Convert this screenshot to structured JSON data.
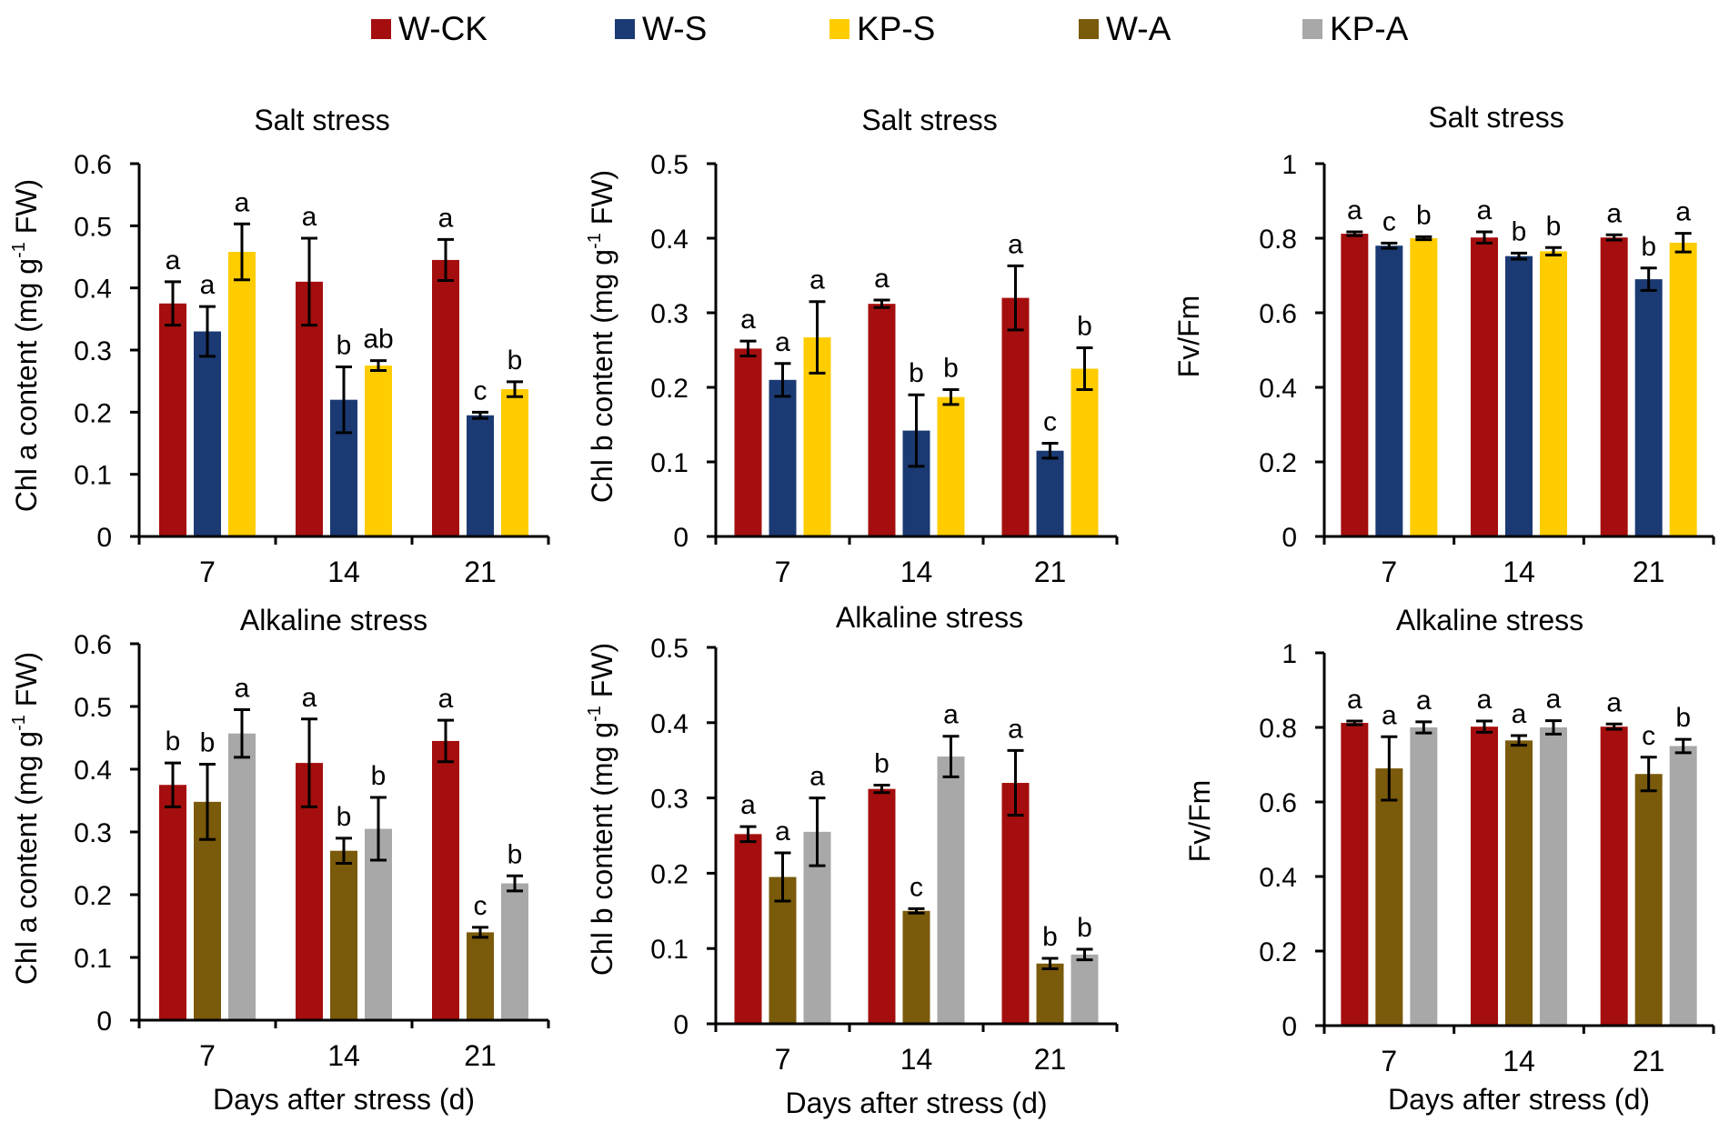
{
  "legend": [
    {
      "name": "W-CK",
      "color": "#A50E0E"
    },
    {
      "name": "W-S",
      "color": "#1B3A73"
    },
    {
      "name": "KP-S",
      "color": "#FFCC00"
    },
    {
      "name": "W-A",
      "color": "#7A5A0B"
    },
    {
      "name": "KP-A",
      "color": "#A8A8A8"
    }
  ],
  "chart_data": [
    {
      "type": "bar",
      "title": "Salt stress",
      "xlabel": "",
      "ylabel": "Chl a content (mg g⁻¹ FW)",
      "ylim": [
        0,
        0.6
      ],
      "yticks": [
        "0",
        "0.1",
        "0.2",
        "0.3",
        "0.4",
        "0.5",
        "0.6"
      ],
      "categories": [
        "7",
        "14",
        "21"
      ],
      "series": [
        {
          "name": "W-CK",
          "color": "#A50E0E",
          "values": [
            0.375,
            0.41,
            0.445
          ],
          "errors": [
            0.035,
            0.07,
            0.033
          ],
          "letters": [
            "a",
            "a",
            "a"
          ]
        },
        {
          "name": "W-S",
          "color": "#1B3A73",
          "values": [
            0.33,
            0.22,
            0.195
          ],
          "errors": [
            0.04,
            0.053,
            0.005
          ],
          "letters": [
            "a",
            "b",
            "c"
          ]
        },
        {
          "name": "KP-S",
          "color": "#FFCC00",
          "values": [
            0.458,
            0.275,
            0.237
          ],
          "errors": [
            0.045,
            0.008,
            0.012
          ],
          "letters": [
            "a",
            "ab",
            "b"
          ]
        }
      ]
    },
    {
      "type": "bar",
      "title": "Salt stress",
      "xlabel": "",
      "ylabel": "Chl b content (mg g⁻¹ FW)",
      "ylim": [
        0,
        0.5
      ],
      "yticks": [
        "0",
        "0.1",
        "0.2",
        "0.3",
        "0.4",
        "0.5"
      ],
      "categories": [
        "7",
        "14",
        "21"
      ],
      "series": [
        {
          "name": "W-CK",
          "color": "#A50E0E",
          "values": [
            0.252,
            0.312,
            0.32
          ],
          "errors": [
            0.01,
            0.005,
            0.043
          ],
          "letters": [
            "a",
            "a",
            "a"
          ]
        },
        {
          "name": "W-S",
          "color": "#1B3A73",
          "values": [
            0.21,
            0.142,
            0.115
          ],
          "errors": [
            0.022,
            0.048,
            0.01
          ],
          "letters": [
            "a",
            "b",
            "c"
          ]
        },
        {
          "name": "KP-S",
          "color": "#FFCC00",
          "values": [
            0.267,
            0.187,
            0.225
          ],
          "errors": [
            0.048,
            0.01,
            0.028
          ],
          "letters": [
            "a",
            "b",
            "b"
          ]
        }
      ]
    },
    {
      "type": "bar",
      "title": "Salt stress",
      "xlabel": "",
      "ylabel": "Fv/Fm",
      "ylim": [
        0,
        1
      ],
      "yticks": [
        "0",
        "0.2",
        "0.4",
        "0.6",
        "0.8",
        "1"
      ],
      "categories": [
        "7",
        "14",
        "21"
      ],
      "series": [
        {
          "name": "W-CK",
          "color": "#A50E0E",
          "values": [
            0.812,
            0.802,
            0.802
          ],
          "errors": [
            0.005,
            0.015,
            0.007
          ],
          "letters": [
            "a",
            "a",
            "a"
          ]
        },
        {
          "name": "W-S",
          "color": "#1B3A73",
          "values": [
            0.78,
            0.752,
            0.69
          ],
          "errors": [
            0.007,
            0.008,
            0.03
          ],
          "letters": [
            "c",
            "b",
            "b"
          ]
        },
        {
          "name": "KP-S",
          "color": "#FFCC00",
          "values": [
            0.8,
            0.765,
            0.788
          ],
          "errors": [
            0.004,
            0.01,
            0.025
          ],
          "letters": [
            "b",
            "b",
            "a"
          ]
        }
      ]
    },
    {
      "type": "bar",
      "title": "Alkaline stress",
      "xlabel": "Days after stress (d)",
      "ylabel": "Chl a content (mg g⁻¹ FW)",
      "ylim": [
        0,
        0.6
      ],
      "yticks": [
        "0",
        "0.1",
        "0.2",
        "0.3",
        "0.4",
        "0.5",
        "0.6"
      ],
      "categories": [
        "7",
        "14",
        "21"
      ],
      "series": [
        {
          "name": "W-CK",
          "color": "#A50E0E",
          "values": [
            0.375,
            0.41,
            0.445
          ],
          "errors": [
            0.035,
            0.07,
            0.033
          ],
          "letters": [
            "b",
            "a",
            "a"
          ]
        },
        {
          "name": "W-A",
          "color": "#7A5A0B",
          "values": [
            0.348,
            0.27,
            0.14
          ],
          "errors": [
            0.06,
            0.02,
            0.008
          ],
          "letters": [
            "b",
            "b",
            "c"
          ]
        },
        {
          "name": "KP-A",
          "color": "#A8A8A8",
          "values": [
            0.457,
            0.305,
            0.218
          ],
          "errors": [
            0.038,
            0.05,
            0.012
          ],
          "letters": [
            "a",
            "b",
            "b"
          ]
        }
      ]
    },
    {
      "type": "bar",
      "title": "Alkaline stress",
      "xlabel": "Days after stress (d)",
      "ylabel": "Chl b content (mg g⁻¹ FW)",
      "ylim": [
        0,
        0.5
      ],
      "yticks": [
        "0",
        "0.1",
        "0.2",
        "0.3",
        "0.4",
        "0.5"
      ],
      "categories": [
        "7",
        "14",
        "21"
      ],
      "series": [
        {
          "name": "W-CK",
          "color": "#A50E0E",
          "values": [
            0.252,
            0.312,
            0.32
          ],
          "errors": [
            0.01,
            0.005,
            0.043
          ],
          "letters": [
            "a",
            "b",
            "a"
          ]
        },
        {
          "name": "W-A",
          "color": "#7A5A0B",
          "values": [
            0.195,
            0.15,
            0.08
          ],
          "errors": [
            0.032,
            0.003,
            0.007
          ],
          "letters": [
            "a",
            "c",
            "b"
          ]
        },
        {
          "name": "KP-A",
          "color": "#A8A8A8",
          "values": [
            0.255,
            0.355,
            0.092
          ],
          "errors": [
            0.045,
            0.027,
            0.007
          ],
          "letters": [
            "a",
            "a",
            "b"
          ]
        }
      ]
    },
    {
      "type": "bar",
      "title": "Alkaline stress",
      "xlabel": "Days after stress (d)",
      "ylabel": "Fv/Fm",
      "ylim": [
        0,
        1
      ],
      "yticks": [
        "0",
        "0.2",
        "0.4",
        "0.6",
        "0.8",
        "1"
      ],
      "categories": [
        "7",
        "14",
        "21"
      ],
      "series": [
        {
          "name": "W-CK",
          "color": "#A50E0E",
          "values": [
            0.812,
            0.802,
            0.802
          ],
          "errors": [
            0.005,
            0.015,
            0.007
          ],
          "letters": [
            "a",
            "a",
            "a"
          ]
        },
        {
          "name": "W-A",
          "color": "#7A5A0B",
          "values": [
            0.69,
            0.765,
            0.675
          ],
          "errors": [
            0.085,
            0.013,
            0.045
          ],
          "letters": [
            "a",
            "a",
            "c"
          ]
        },
        {
          "name": "KP-A",
          "color": "#A8A8A8",
          "values": [
            0.8,
            0.8,
            0.75
          ],
          "errors": [
            0.015,
            0.018,
            0.018
          ],
          "letters": [
            "a",
            "a",
            "b"
          ]
        }
      ]
    }
  ]
}
